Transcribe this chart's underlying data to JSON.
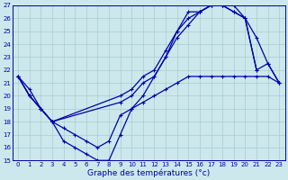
{
  "title": "Graphe des températures (°c)",
  "bg_color": "#cce8ec",
  "grid_color": "#aacccc",
  "line_color": "#0000aa",
  "xlim": [
    -0.5,
    23.5
  ],
  "ylim": [
    15,
    27
  ],
  "xticks": [
    0,
    1,
    2,
    3,
    4,
    5,
    6,
    7,
    8,
    9,
    10,
    11,
    12,
    13,
    14,
    15,
    16,
    17,
    18,
    19,
    20,
    21,
    22,
    23
  ],
  "yticks": [
    15,
    16,
    17,
    18,
    19,
    20,
    21,
    22,
    23,
    24,
    25,
    26,
    27
  ],
  "line1_x": [
    0,
    1,
    2,
    3,
    4,
    5,
    6,
    7,
    8,
    9,
    10,
    11,
    12,
    13,
    14,
    15,
    16,
    17,
    18,
    19,
    20,
    21
  ],
  "line1_y": [
    21.5,
    20.0,
    19.0,
    18.0,
    16.5,
    16.0,
    15.5,
    15.0,
    15.0,
    17.0,
    19.0,
    20.0,
    21.5,
    23.0,
    25.0,
    26.0,
    26.5,
    27.0,
    27.0,
    26.5,
    26.0,
    22.0
  ],
  "line2_x": [
    0,
    1,
    2,
    3,
    9,
    10,
    11,
    12,
    13,
    14,
    15,
    16,
    17,
    18,
    19,
    20,
    21,
    22,
    23
  ],
  "line2_y": [
    21.5,
    20.0,
    19.0,
    18.0,
    19.5,
    20.0,
    21.0,
    21.5,
    23.0,
    24.5,
    25.5,
    26.5,
    27.0,
    27.0,
    27.0,
    26.0,
    22.0,
    22.5,
    21.0
  ],
  "line3_x": [
    0,
    1,
    2,
    3,
    9,
    10,
    11,
    12,
    13,
    14,
    15,
    16,
    17,
    18,
    19,
    20,
    21,
    22,
    23
  ],
  "line3_y": [
    21.5,
    20.0,
    19.0,
    18.0,
    20.0,
    20.5,
    21.5,
    22.0,
    23.5,
    25.0,
    26.5,
    26.5,
    27.0,
    27.0,
    26.5,
    26.0,
    24.5,
    22.5,
    21.0
  ],
  "line4_x": [
    0,
    1,
    2,
    3,
    4,
    5,
    6,
    7,
    8,
    9,
    10,
    11,
    12,
    13,
    14,
    15,
    16,
    17,
    18,
    19,
    20,
    21,
    22,
    23
  ],
  "line4_y": [
    21.5,
    20.5,
    19.0,
    18.0,
    17.5,
    17.0,
    16.5,
    16.0,
    16.5,
    18.5,
    19.0,
    19.5,
    20.0,
    20.5,
    21.0,
    21.5,
    21.5,
    21.5,
    21.5,
    21.5,
    21.5,
    21.5,
    21.5,
    21.0
  ]
}
